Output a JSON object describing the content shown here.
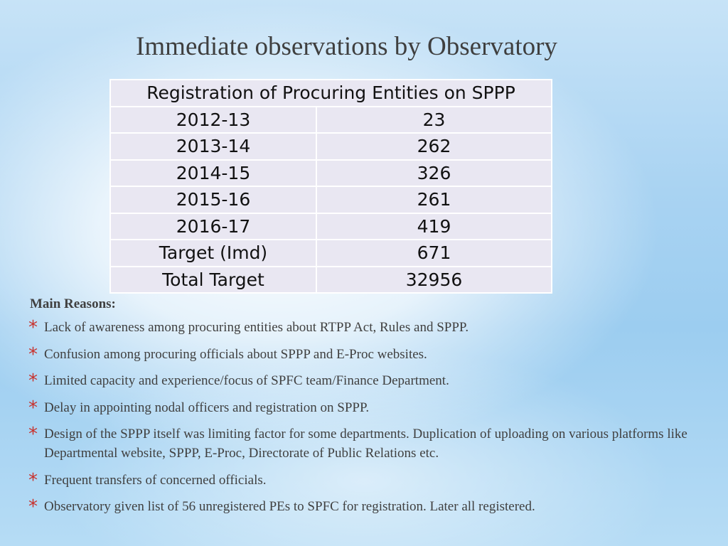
{
  "slide": {
    "title": "Immediate observations by Observatory"
  },
  "table": {
    "header": "Registration of Procuring Entities on SPPP",
    "rows": [
      {
        "year": "2012-13",
        "count": "23"
      },
      {
        "year": "2013-14",
        "count": "262"
      },
      {
        "year": "2014-15",
        "count": "326"
      },
      {
        "year": "2015-16",
        "count": "261"
      },
      {
        "year": "2016-17",
        "count": "419"
      },
      {
        "year": "Target (Imd)",
        "count": "671"
      },
      {
        "year": "Total Target",
        "count": "32956"
      }
    ]
  },
  "reasons": {
    "heading": "Main Reasons:",
    "bullet_symbol": "*",
    "bullet_color": "#c8322d",
    "items": [
      "Lack of awareness among procuring entities about RTPP Act, Rules and SPPP.",
      "Confusion among procuring officials about SPPP and E-Proc websites.",
      "Limited capacity and experience/focus of SPFC team/Finance Department.",
      "Delay in appointing nodal officers and registration on SPPP.",
      "Design of the SPPP itself was limiting factor for some departments. Duplication of uploading on various platforms like Departmental website, SPPP, E-Proc, Directorate of Public Relations etc.",
      "Frequent transfers of concerned officials.",
      "Observatory given list of 56 unregistered PEs to SPFC for registration. Later all registered."
    ]
  }
}
